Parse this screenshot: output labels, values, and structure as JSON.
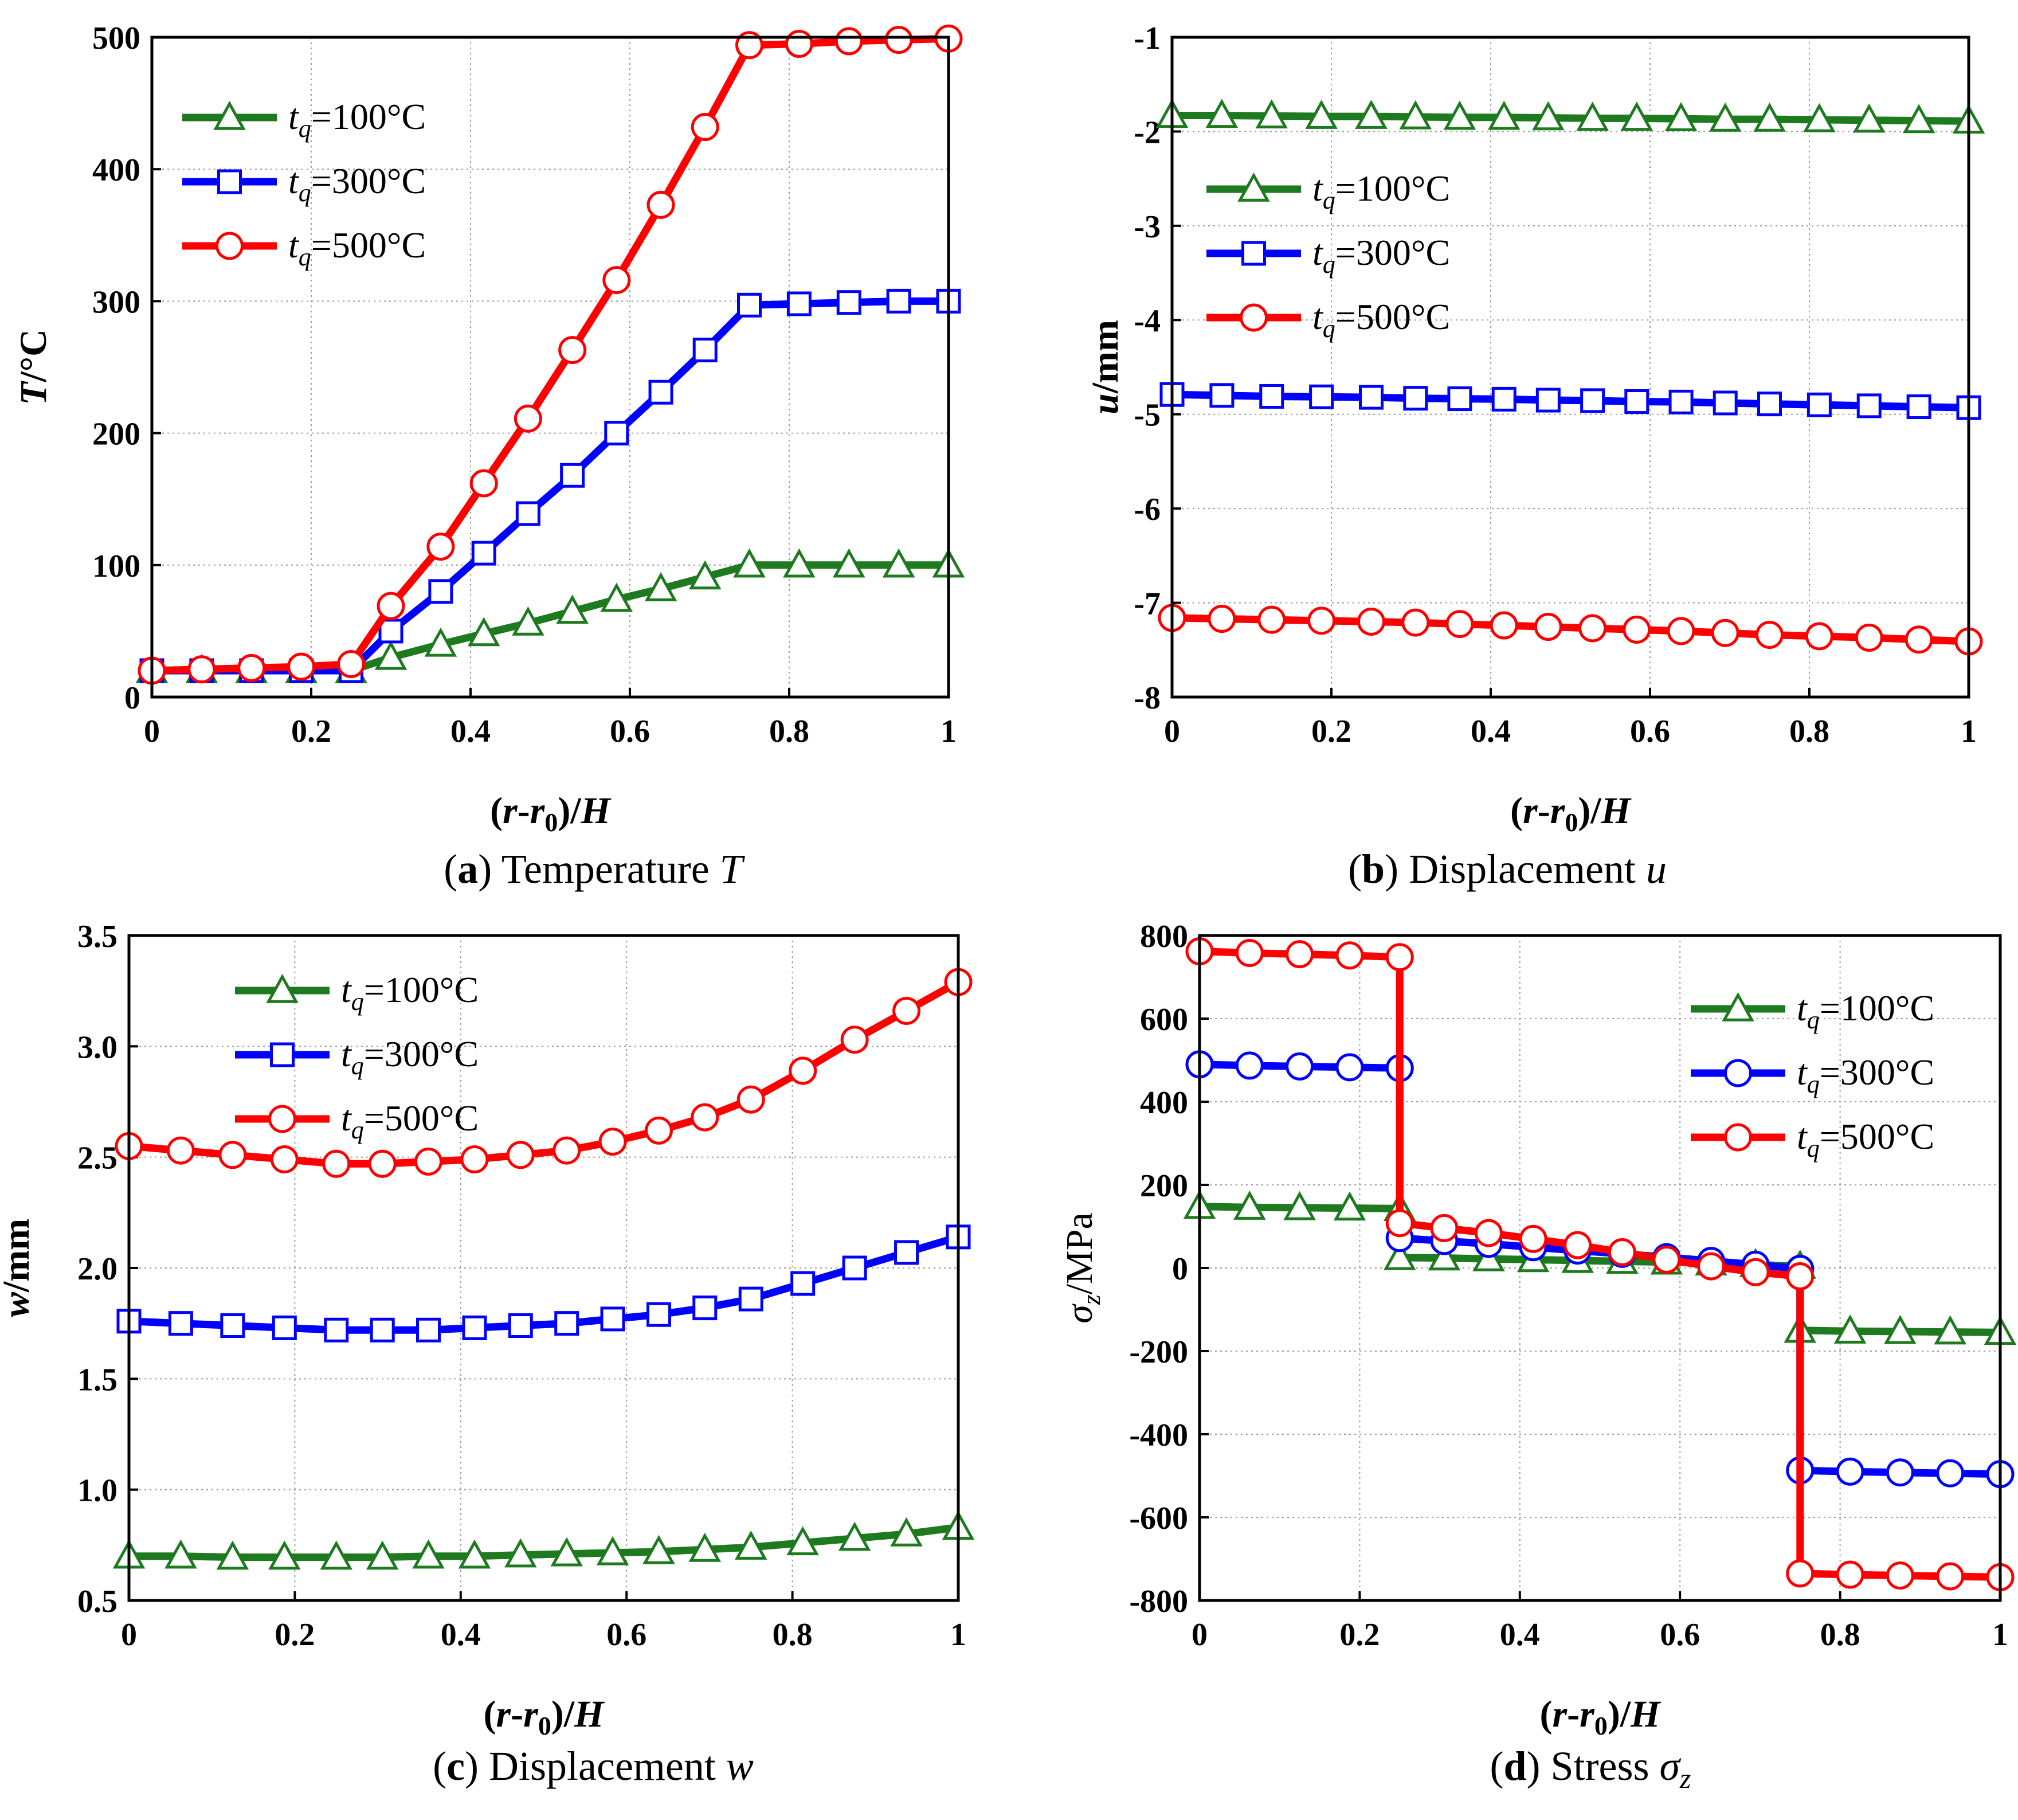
{
  "figure": {
    "colors": {
      "g100": "#1e7a1e",
      "g300": "#0000ff",
      "g500": "#ff0000"
    },
    "legend_labels": [
      {
        "pre": "t",
        "sub": "q",
        "post": "=100°C"
      },
      {
        "pre": "t",
        "sub": "q",
        "post": "=300°C"
      },
      {
        "pre": "t",
        "sub": "q",
        "post": "=500°C"
      }
    ]
  },
  "chart_data": [
    {
      "id": "a",
      "type": "line",
      "caption": {
        "letter": "a",
        "text": "Temperature",
        "symbol": "T"
      },
      "xlabel": {
        "open": "(",
        "r": "r",
        "dash": "-",
        "r0": "r",
        "zero": "0",
        "close": ")/",
        "H": "H"
      },
      "ylabel": {
        "italic": "T",
        "rest": "/°C"
      },
      "xlim": [
        0,
        1
      ],
      "ylim": [
        0,
        500
      ],
      "xticks": [
        0,
        0.2,
        0.4,
        0.6,
        0.8,
        1
      ],
      "xtick_labels": [
        "0",
        "0.2",
        "0.4",
        "0.6",
        "0.8",
        "1"
      ],
      "yticks": [
        0,
        100,
        200,
        300,
        400,
        500
      ],
      "ytick_labels": [
        "0",
        "100",
        "200",
        "300",
        "400",
        "500"
      ],
      "series": [
        {
          "name": "tq=100°C",
          "marker": "triangle",
          "color": "#1e7a1e",
          "x": [
            0,
            0.0625,
            0.125,
            0.1875,
            0.25,
            0.3,
            0.3625,
            0.4167,
            0.4722,
            0.5278,
            0.5833,
            0.6389,
            0.6944,
            0.75,
            0.8125,
            0.875,
            0.9375,
            1.0
          ],
          "y": [
            20,
            20,
            20,
            20,
            20,
            30,
            40,
            48,
            56,
            65,
            74,
            82,
            91,
            100,
            100,
            100,
            100,
            100
          ]
        },
        {
          "name": "tq=300°C",
          "marker": "square",
          "color": "#0000ff",
          "x": [
            0,
            0.0625,
            0.125,
            0.1875,
            0.25,
            0.3,
            0.3625,
            0.4167,
            0.4722,
            0.5278,
            0.5833,
            0.6389,
            0.6944,
            0.75,
            0.8125,
            0.875,
            0.9375,
            1.0
          ],
          "y": [
            20,
            20,
            20,
            20,
            20,
            50,
            80,
            109,
            139,
            168,
            200,
            231,
            263,
            297,
            298,
            299,
            300,
            300
          ]
        },
        {
          "name": "tq=500°C",
          "marker": "circle",
          "color": "#ff0000",
          "x": [
            0,
            0.0625,
            0.125,
            0.1875,
            0.25,
            0.3,
            0.3625,
            0.4167,
            0.4722,
            0.5278,
            0.5833,
            0.6389,
            0.6944,
            0.75,
            0.8125,
            0.875,
            0.9375,
            1.0
          ],
          "y": [
            20,
            21,
            22,
            23,
            25,
            69,
            114,
            162,
            211,
            263,
            316,
            373,
            432,
            494,
            495,
            497,
            498,
            499
          ]
        }
      ],
      "legend": "top-left",
      "grid": true
    },
    {
      "id": "b",
      "type": "line",
      "caption": {
        "letter": "b",
        "text": "Displacement",
        "symbol": "u"
      },
      "xlabel": {
        "open": "(",
        "r": "r",
        "dash": "-",
        "r0": "r",
        "zero": "0",
        "close": ")/",
        "H": "H"
      },
      "ylabel": {
        "italic": "u",
        "rest": "/mm"
      },
      "xlim": [
        0,
        1
      ],
      "ylim": [
        -8,
        -1
      ],
      "xticks": [
        0,
        0.2,
        0.4,
        0.6,
        0.8,
        1
      ],
      "xtick_labels": [
        "0",
        "0.2",
        "0.4",
        "0.6",
        "0.8",
        "1"
      ],
      "yticks": [
        -8,
        -7,
        -6,
        -5,
        -4,
        -3,
        -2,
        -1
      ],
      "ytick_labels": [
        "-8",
        "-7",
        "-6",
        "-5",
        "-4",
        "-3",
        "-2",
        "-1"
      ],
      "series": [
        {
          "name": "tq=100°C",
          "marker": "triangle",
          "color": "#1e7a1e",
          "x": [
            0,
            0.0625,
            0.125,
            0.1875,
            0.25,
            0.3056,
            0.3611,
            0.4167,
            0.4722,
            0.5278,
            0.5833,
            0.6389,
            0.6944,
            0.75,
            0.8125,
            0.875,
            0.9375,
            1.0
          ],
          "y": [
            -1.83,
            -1.83,
            -1.835,
            -1.84,
            -1.84,
            -1.845,
            -1.85,
            -1.85,
            -1.855,
            -1.86,
            -1.86,
            -1.865,
            -1.87,
            -1.87,
            -1.875,
            -1.88,
            -1.885,
            -1.89
          ]
        },
        {
          "name": "tq=300°C",
          "marker": "square",
          "color": "#0000ff",
          "x": [
            0,
            0.0625,
            0.125,
            0.1875,
            0.25,
            0.3056,
            0.3611,
            0.4167,
            0.4722,
            0.5278,
            0.5833,
            0.6389,
            0.6944,
            0.75,
            0.8125,
            0.875,
            0.9375,
            1.0
          ],
          "y": [
            -4.79,
            -4.8,
            -4.81,
            -4.815,
            -4.82,
            -4.83,
            -4.835,
            -4.84,
            -4.85,
            -4.855,
            -4.865,
            -4.87,
            -4.88,
            -4.89,
            -4.9,
            -4.91,
            -4.92,
            -4.93
          ]
        },
        {
          "name": "tq=500°C",
          "marker": "circle",
          "color": "#ff0000",
          "x": [
            0,
            0.0625,
            0.125,
            0.1875,
            0.25,
            0.3056,
            0.3611,
            0.4167,
            0.4722,
            0.5278,
            0.5833,
            0.6389,
            0.6944,
            0.75,
            0.8125,
            0.875,
            0.9375,
            1.0
          ],
          "y": [
            -7.16,
            -7.17,
            -7.18,
            -7.19,
            -7.2,
            -7.21,
            -7.225,
            -7.24,
            -7.255,
            -7.27,
            -7.285,
            -7.3,
            -7.32,
            -7.34,
            -7.355,
            -7.37,
            -7.39,
            -7.41
          ]
        }
      ],
      "legend": "top-left",
      "grid": true
    },
    {
      "id": "c",
      "type": "line",
      "caption": {
        "letter": "c",
        "text": "Displacement",
        "symbol": "w"
      },
      "xlabel": {
        "open": "(",
        "r": "r",
        "dash": "-",
        "r0": "r",
        "zero": "0",
        "close": ")/",
        "H": "H"
      },
      "ylabel": {
        "italic": "w",
        "rest": "/mm"
      },
      "xlim": [
        0,
        1
      ],
      "ylim": [
        0.5,
        3.5
      ],
      "xticks": [
        0,
        0.2,
        0.4,
        0.6,
        0.8,
        1
      ],
      "xtick_labels": [
        "0",
        "0.2",
        "0.4",
        "0.6",
        "0.8",
        "1"
      ],
      "yticks": [
        0.5,
        1.0,
        1.5,
        2.0,
        2.5,
        3.0,
        3.5
      ],
      "ytick_labels": [
        "0.5",
        "1.0",
        "1.5",
        "2.0",
        "2.5",
        "3.0",
        "3.5"
      ],
      "series": [
        {
          "name": "tq=100°C",
          "marker": "triangle",
          "color": "#1e7a1e",
          "x": [
            0,
            0.0625,
            0.125,
            0.1875,
            0.25,
            0.3056,
            0.3611,
            0.4167,
            0.4722,
            0.5278,
            0.5833,
            0.6389,
            0.6944,
            0.75,
            0.8125,
            0.875,
            0.9375,
            1.0
          ],
          "y": [
            0.7,
            0.7,
            0.695,
            0.695,
            0.695,
            0.695,
            0.7,
            0.7,
            0.705,
            0.71,
            0.715,
            0.72,
            0.73,
            0.74,
            0.76,
            0.78,
            0.8,
            0.83
          ]
        },
        {
          "name": "tq=300°C",
          "marker": "square",
          "color": "#0000ff",
          "x": [
            0,
            0.0625,
            0.125,
            0.1875,
            0.25,
            0.3056,
            0.3611,
            0.4167,
            0.4722,
            0.5278,
            0.5833,
            0.6389,
            0.6944,
            0.75,
            0.8125,
            0.875,
            0.9375,
            1.0
          ],
          "y": [
            1.76,
            1.75,
            1.74,
            1.73,
            1.72,
            1.72,
            1.72,
            1.73,
            1.74,
            1.75,
            1.77,
            1.79,
            1.82,
            1.86,
            1.93,
            2.0,
            2.07,
            2.14
          ]
        },
        {
          "name": "tq=500°C",
          "marker": "circle",
          "color": "#ff0000",
          "x": [
            0,
            0.0625,
            0.125,
            0.1875,
            0.25,
            0.3056,
            0.3611,
            0.4167,
            0.4722,
            0.5278,
            0.5833,
            0.6389,
            0.6944,
            0.75,
            0.8125,
            0.875,
            0.9375,
            1.0
          ],
          "y": [
            2.55,
            2.53,
            2.51,
            2.49,
            2.47,
            2.47,
            2.48,
            2.49,
            2.51,
            2.53,
            2.57,
            2.62,
            2.68,
            2.76,
            2.89,
            3.03,
            3.16,
            3.29
          ]
        }
      ],
      "legend": "top",
      "grid": true
    },
    {
      "id": "d",
      "type": "line",
      "caption": {
        "letter": "d",
        "text": "Stress",
        "symbol": "σ",
        "sub": "z"
      },
      "xlabel": {
        "open": "(",
        "r": "r",
        "dash": "-",
        "r0": "r",
        "zero": "0",
        "close": ")/",
        "H": "H"
      },
      "ylabel": {
        "italic": "σ",
        "sub": "z",
        "rest": "/MPa"
      },
      "xlim": [
        0,
        1
      ],
      "ylim": [
        -800,
        800
      ],
      "xticks": [
        0,
        0.2,
        0.4,
        0.6,
        0.8,
        1
      ],
      "xtick_labels": [
        "0",
        "0.2",
        "0.4",
        "0.6",
        "0.8",
        "1"
      ],
      "yticks": [
        -800,
        -600,
        -400,
        -200,
        0,
        200,
        400,
        600,
        800
      ],
      "ytick_labels": [
        "-800",
        "-600",
        "-400",
        "-200",
        "0",
        "200",
        "400",
        "600",
        "800"
      ],
      "series": [
        {
          "name": "tq=100°C",
          "marker": "triangle",
          "color": "#1e7a1e",
          "x": [
            0,
            0.0625,
            0.125,
            0.1875,
            0.25,
            0.25,
            0.3056,
            0.3611,
            0.4167,
            0.4722,
            0.5278,
            0.5833,
            0.6389,
            0.6944,
            0.75,
            0.75,
            0.8125,
            0.875,
            0.9375,
            1.0
          ],
          "y": [
            148,
            146,
            145,
            144,
            143,
            25,
            24,
            22,
            20,
            18,
            16,
            14,
            12,
            8,
            4,
            -150,
            -152,
            -153,
            -154,
            -155
          ]
        },
        {
          "name": "tq=300°C",
          "marker": "circle",
          "color": "#0000ff",
          "x": [
            0,
            0.0625,
            0.125,
            0.1875,
            0.25,
            0.25,
            0.3056,
            0.3611,
            0.4167,
            0.4722,
            0.5278,
            0.5833,
            0.6389,
            0.6944,
            0.75,
            0.75,
            0.8125,
            0.875,
            0.9375,
            1.0
          ],
          "y": [
            490,
            487,
            485,
            483,
            481,
            72,
            65,
            58,
            50,
            42,
            34,
            26,
            17,
            8,
            -2,
            -487,
            -490,
            -492,
            -494,
            -496
          ]
        },
        {
          "name": "tq=500°C",
          "marker": "circle",
          "color": "#ff0000",
          "x": [
            0,
            0.0625,
            0.125,
            0.1875,
            0.25,
            0.25,
            0.3056,
            0.3611,
            0.4167,
            0.4722,
            0.5278,
            0.5833,
            0.6389,
            0.6944,
            0.75,
            0.75,
            0.8125,
            0.875,
            0.9375,
            1.0
          ],
          "y": [
            762,
            758,
            755,
            752,
            748,
            108,
            96,
            84,
            70,
            55,
            38,
            20,
            4,
            -10,
            -20,
            -735,
            -738,
            -740,
            -742,
            -744
          ]
        }
      ],
      "legend": "top-right",
      "grid": true
    }
  ]
}
